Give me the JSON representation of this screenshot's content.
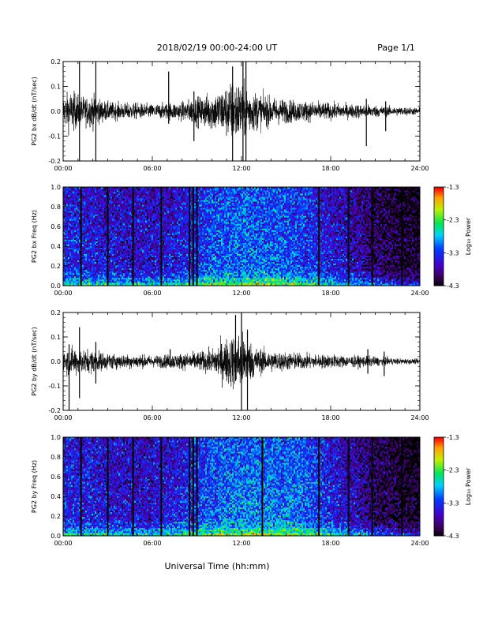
{
  "header": {
    "title": "2018/02/19  00:00-24:00 UT",
    "page": "Page 1/1"
  },
  "footer": {
    "xlabel": "Universal Time (hh:mm)"
  },
  "colors": {
    "trace": "#000000",
    "background": "#ffffff"
  },
  "chart_data": [
    {
      "type": "line",
      "name": "bx-waveform",
      "ylabel": "PG2 bx dB/dt (nT/sec)",
      "x_ticks": [
        "00:00",
        "06:00",
        "12:00",
        "18:00",
        "24:00"
      ],
      "xlim": [
        0,
        24
      ],
      "ylim": [
        -0.2,
        0.2
      ],
      "y_ticks": [
        "0.2",
        "0.1",
        "0.0",
        "-0.1",
        "-0.2"
      ],
      "y_tick_values": [
        0.2,
        0.1,
        0.0,
        -0.1,
        -0.2
      ],
      "envelope": {
        "hours": [
          0,
          0.5,
          1,
          1.5,
          2,
          2.5,
          3,
          4,
          5,
          6,
          7,
          8,
          9,
          10,
          10.5,
          11,
          11.5,
          12,
          12.5,
          13,
          14,
          15,
          16,
          17,
          18,
          19,
          20,
          21,
          22,
          23,
          24
        ],
        "amplitude": [
          0.06,
          0.09,
          0.07,
          0.06,
          0.07,
          0.05,
          0.04,
          0.035,
          0.035,
          0.03,
          0.035,
          0.04,
          0.06,
          0.08,
          0.09,
          0.11,
          0.14,
          0.12,
          0.1,
          0.08,
          0.06,
          0.05,
          0.045,
          0.04,
          0.035,
          0.03,
          0.03,
          0.025,
          0.02,
          0.018,
          0.015
        ]
      },
      "spikes": [
        {
          "hour": 1.1,
          "min": -0.2,
          "max": 0.2
        },
        {
          "hour": 2.2,
          "min": -0.2,
          "max": 0.22
        },
        {
          "hour": 7.1,
          "min": -0.05,
          "max": 0.16
        },
        {
          "hour": 8.8,
          "min": -0.12,
          "max": 0.08
        },
        {
          "hour": 11.4,
          "min": -0.2,
          "max": 0.18
        },
        {
          "hour": 12.1,
          "min": -0.22,
          "max": 0.22
        },
        {
          "hour": 12.3,
          "min": -0.22,
          "max": 0.22
        },
        {
          "hour": 20.4,
          "min": -0.14,
          "max": 0.05
        },
        {
          "hour": 21.7,
          "min": -0.08,
          "max": 0.04
        }
      ]
    },
    {
      "type": "heatmap",
      "name": "bx-spectrogram",
      "ylabel": "PG2 bx Freq (Hz)",
      "x_ticks": [
        "00:00",
        "06:00",
        "12:00",
        "18:00",
        "24:00"
      ],
      "xlim": [
        0,
        24
      ],
      "ylim": [
        0,
        1.0
      ],
      "y_ticks": [
        "1.0",
        "0.8",
        "0.6",
        "0.4",
        "0.2",
        "0.0"
      ],
      "y_tick_values": [
        1.0,
        0.8,
        0.6,
        0.4,
        0.2,
        0.0
      ],
      "colorbar": {
        "label": "Log₁₀ Power",
        "ticks": [
          "-1.3",
          "-2.3",
          "-3.3",
          "-4.3"
        ],
        "tick_values": [
          -1.3,
          -2.3,
          -3.3,
          -4.3
        ],
        "range": [
          -4.3,
          -1.3
        ]
      },
      "gap_lines_hours": [
        1.2,
        3.0,
        4.7,
        6.6,
        8.5,
        8.75,
        9.0,
        17.2,
        19.2,
        20.8,
        22.8
      ],
      "power_profile": {
        "hours": [
          0,
          2,
          4,
          6,
          8,
          10,
          12,
          14,
          16,
          18,
          20,
          21,
          22,
          23,
          24
        ],
        "base_log_power": [
          -3.3,
          -3.4,
          -3.5,
          -3.5,
          -3.4,
          -3.1,
          -3.0,
          -3.05,
          -3.15,
          -3.45,
          -3.7,
          -3.95,
          -4.05,
          -4.15,
          -4.2
        ]
      }
    },
    {
      "type": "line",
      "name": "by-waveform",
      "ylabel": "PG2 by dB/dt (nT/sec)",
      "x_ticks": [
        "00:00",
        "06:00",
        "12:00",
        "18:00",
        "24:00"
      ],
      "xlim": [
        0,
        24
      ],
      "ylim": [
        -0.2,
        0.2
      ],
      "y_ticks": [
        "0.2",
        "0.1",
        "0.0",
        "-0.1",
        "-0.2"
      ],
      "y_tick_values": [
        0.2,
        0.1,
        0.0,
        -0.1,
        -0.2
      ],
      "envelope": {
        "hours": [
          0,
          0.5,
          1,
          1.5,
          2,
          2.5,
          3,
          4,
          5,
          6,
          7,
          8,
          9,
          10,
          10.5,
          11,
          11.5,
          12,
          12.5,
          13,
          14,
          15,
          16,
          17,
          18,
          19,
          20,
          21,
          22,
          23,
          24
        ],
        "amplitude": [
          0.05,
          0.06,
          0.06,
          0.05,
          0.05,
          0.04,
          0.035,
          0.03,
          0.03,
          0.025,
          0.03,
          0.035,
          0.04,
          0.05,
          0.08,
          0.1,
          0.12,
          0.13,
          0.09,
          0.06,
          0.045,
          0.04,
          0.035,
          0.03,
          0.03,
          0.025,
          0.025,
          0.02,
          0.015,
          0.012,
          0.01
        ]
      },
      "spikes": [
        {
          "hour": 0.4,
          "min": -0.22,
          "max": 0.07
        },
        {
          "hour": 1.1,
          "min": -0.15,
          "max": 0.14
        },
        {
          "hour": 2.2,
          "min": -0.09,
          "max": 0.08
        },
        {
          "hour": 7.2,
          "min": -0.02,
          "max": 0.05
        },
        {
          "hour": 11.6,
          "min": -0.08,
          "max": 0.19
        },
        {
          "hour": 12.0,
          "min": -0.22,
          "max": 0.2
        },
        {
          "hour": 12.4,
          "min": -0.22,
          "max": 0.13
        },
        {
          "hour": 20.5,
          "min": -0.05,
          "max": 0.05
        },
        {
          "hour": 21.6,
          "min": -0.06,
          "max": 0.04
        }
      ]
    },
    {
      "type": "heatmap",
      "name": "by-spectrogram",
      "ylabel": "PG2 by Freq (Hz)",
      "x_ticks": [
        "00:00",
        "06:00",
        "12:00",
        "18:00",
        "24:00"
      ],
      "xlim": [
        0,
        24
      ],
      "ylim": [
        0,
        1.0
      ],
      "y_ticks": [
        "1.0",
        "0.8",
        "0.6",
        "0.4",
        "0.2",
        "0.0"
      ],
      "y_tick_values": [
        1.0,
        0.8,
        0.6,
        0.4,
        0.2,
        0.0
      ],
      "colorbar": {
        "label": "Log₁₀ Power",
        "ticks": [
          "-1.3",
          "-2.3",
          "-3.3",
          "-4.3"
        ],
        "tick_values": [
          -1.3,
          -2.3,
          -3.3,
          -4.3
        ],
        "range": [
          -4.3,
          -1.3
        ]
      },
      "gap_lines_hours": [
        1.2,
        3.0,
        4.7,
        6.6,
        8.5,
        8.75,
        9.0,
        13.4,
        17.2,
        19.2,
        20.8,
        22.8
      ],
      "power_profile": {
        "hours": [
          0,
          2,
          4,
          6,
          8,
          10,
          12,
          14,
          16,
          18,
          20,
          21,
          22,
          23,
          24
        ],
        "base_log_power": [
          -3.3,
          -3.4,
          -3.5,
          -3.5,
          -3.35,
          -3.05,
          -2.95,
          -2.95,
          -3.0,
          -3.35,
          -3.7,
          -3.95,
          -4.05,
          -4.15,
          -4.2
        ]
      }
    }
  ]
}
